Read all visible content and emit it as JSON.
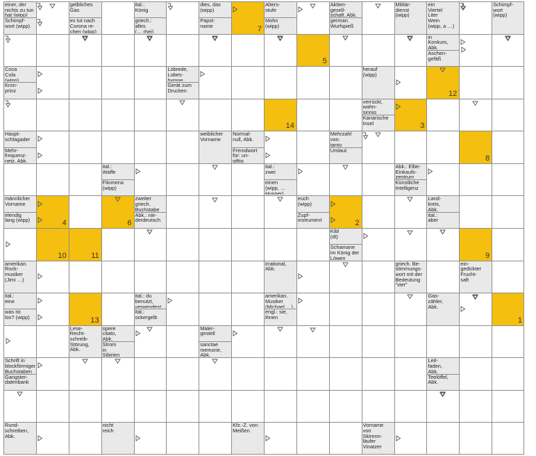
{
  "grid": {
    "cols": 16,
    "rows": 14
  },
  "colors": {
    "highlight": "#f4bf0e",
    "clue_bg": "#e9e9e9",
    "grid_line": "#8c8c8c"
  },
  "highlights": [
    {
      "col": 7,
      "row": 0,
      "number": "7"
    },
    {
      "col": 9,
      "row": 1,
      "number": "5"
    },
    {
      "col": 13,
      "row": 2,
      "number": "12"
    },
    {
      "col": 8,
      "row": 3,
      "number": "14"
    },
    {
      "col": 12,
      "row": 3,
      "number": "3"
    },
    {
      "col": 14,
      "row": 4,
      "number": "8"
    },
    {
      "col": 1,
      "row": 6,
      "number": "4"
    },
    {
      "col": 3,
      "row": 6,
      "number": "6"
    },
    {
      "col": 10,
      "row": 6,
      "number": "2"
    },
    {
      "col": 1,
      "row": 7,
      "number": "10"
    },
    {
      "col": 2,
      "row": 7,
      "number": "11"
    },
    {
      "col": 14,
      "row": 7,
      "number": "9"
    },
    {
      "col": 2,
      "row": 9,
      "number": "13"
    },
    {
      "col": 15,
      "row": 9,
      "number": "1"
    }
  ],
  "clues": [
    {
      "col": 0,
      "row": 0,
      "parts": [
        {
          "text": "einer, der nichts zu tun hat (wipp)",
          "arrow": "right-down"
        },
        {
          "text": "Schimpf-\nwort (wipp)",
          "arrow": "right-down"
        }
      ]
    },
    {
      "col": 2,
      "row": 0,
      "parts": [
        {
          "text": "gelbliches Gas",
          "arrow": "down"
        },
        {
          "text": "es tut nach Corona re-\nchen (wipp)",
          "arrow": "down"
        }
      ]
    },
    {
      "col": 4,
      "row": 0,
      "parts": [
        {
          "text": "ital.:\nKönig",
          "arrow": "down"
        },
        {
          "text": "griech.:\nalles\n(… rhei)",
          "arrow": "down"
        }
      ]
    },
    {
      "col": 6,
      "row": 0,
      "parts": [
        {
          "text": "dies, das\n(wipp)",
          "arrow": "right"
        },
        {
          "text": "Papst-\nname",
          "arrow": "down"
        }
      ]
    },
    {
      "col": 8,
      "row": 0,
      "parts": [
        {
          "text": "Alters-\nstufe",
          "arrow": "right"
        },
        {
          "text": "Mohn\n(wipp)",
          "arrow": "down"
        }
      ]
    },
    {
      "col": 10,
      "row": 0,
      "parts": [
        {
          "text": "Aktien-\ngesell-\nschaft, Abk.",
          "arrow": "down"
        },
        {
          "text": "german.\nWurfspieß",
          "arrow": "down"
        }
      ]
    },
    {
      "col": 12,
      "row": 0,
      "parts": [
        {
          "text": "Militär-\ndienst\n(wipp)",
          "arrow": "down"
        }
      ]
    },
    {
      "col": 13,
      "row": 0,
      "parts": [
        {
          "text": "ein\nViertel\nLiter\nWein\n(wipp, a …)",
          "arrow": "right-down"
        }
      ]
    },
    {
      "col": 15,
      "row": 0,
      "parts": [
        {
          "text": "Schimpf-\nwort\n(wipp)",
          "arrow": "down"
        }
      ]
    },
    {
      "col": 13,
      "row": 1,
      "parts": [
        {
          "text": "in\nKonkurs,\nAbk.",
          "arrow": "right"
        },
        {
          "text": "Aschen-\ngefäß",
          "arrow": "down"
        }
      ]
    },
    {
      "col": 0,
      "row": 2,
      "parts": [
        {
          "text": "Coca\nCola\n(wipp)",
          "arrow": "right"
        },
        {
          "text": "Kron-\nprinz",
          "arrow": "right"
        }
      ]
    },
    {
      "col": 5,
      "row": 2,
      "parts": [
        {
          "text": "Lobrede,\nLobes-\nhymne",
          "arrow": "right"
        },
        {
          "text": "Gerät zum\nDrucken",
          "arrow": "down"
        }
      ]
    },
    {
      "col": 11,
      "row": 2,
      "parts": [
        {
          "text": "herauf\n(wipp)",
          "arrow": "right"
        }
      ]
    },
    {
      "col": 11,
      "row": 3,
      "parts": [
        {
          "text": "verrückt,\nwahn-\nsinnig",
          "arrow": "right"
        },
        {
          "text": "Kanarische\nInsel",
          "arrow": "down"
        }
      ]
    },
    {
      "col": 0,
      "row": 4,
      "parts": [
        {
          "text": "Haupt-\nschlagader",
          "arrow": "right"
        },
        {
          "text": "Mehr-\nfrequenz-\nnetz, Abk.",
          "arrow": "right"
        }
      ]
    },
    {
      "col": 6,
      "row": 4,
      "parts": [
        {
          "text": "weiblicher\nVorname",
          "arrow": "down"
        }
      ]
    },
    {
      "col": 7,
      "row": 4,
      "parts": [
        {
          "text": "Normal-\nnull, Abk.",
          "arrow": "right"
        },
        {
          "text": "Fremdwort\nfür: un-\ngiftig",
          "arrow": "right"
        }
      ]
    },
    {
      "col": 10,
      "row": 4,
      "parts": [
        {
          "text": "Mehrzahl\nvon:\ntanto",
          "arrow": "right-down"
        },
        {
          "text": "Umlaut",
          "arrow": "down"
        }
      ]
    },
    {
      "col": 3,
      "row": 5,
      "parts": [
        {
          "text": "ital.:\nWaffe",
          "arrow": "right"
        },
        {
          "text": "Filomena\n(wipp)",
          "arrow": "down"
        }
      ]
    },
    {
      "col": 8,
      "row": 5,
      "parts": [
        {
          "text": "ital.:\nzwei",
          "arrow": "right"
        },
        {
          "text": "einen\n(wipp, …\nHunger)",
          "arrow": "down"
        }
      ]
    },
    {
      "col": 12,
      "row": 5,
      "parts": [
        {
          "text": "Abk.: Elbe-\nEinkaufs-\nzentrum",
          "arrow": "right"
        },
        {
          "text": "Künstliche\nIntelligenz",
          "arrow": "down"
        }
      ]
    },
    {
      "col": 0,
      "row": 6,
      "parts": [
        {
          "text": "männlicher\nVorname",
          "arrow": "right"
        },
        {
          "text": "elendig\nlang (wipp)",
          "arrow": "right"
        }
      ]
    },
    {
      "col": 4,
      "row": 6,
      "parts": [
        {
          "text": "zweiter\ngriech.\nBuchstabe",
          "arrow": "down"
        },
        {
          "text": "Abk.: nie-\nderdeutsch",
          "arrow": "down"
        }
      ]
    },
    {
      "col": 9,
      "row": 6,
      "parts": [
        {
          "text": "euch\n(wipp)",
          "arrow": "right"
        },
        {
          "text": "Zupf-\ninstrument",
          "arrow": "right"
        }
      ]
    },
    {
      "col": 13,
      "row": 6,
      "parts": [
        {
          "text": "Land-\nkreis,\nAbk.",
          "arrow": "down"
        },
        {
          "text": "ital.:\naber",
          "arrow": "down"
        }
      ]
    },
    {
      "col": 10,
      "row": 7,
      "parts": [
        {
          "text": "Kibl\n(dt)",
          "arrow": "right"
        },
        {
          "text": "Schamane\nim König der\nLöwen",
          "arrow": "down"
        }
      ]
    },
    {
      "col": 0,
      "row": 8,
      "parts": [
        {
          "text": "amerikan.\nRock-\nmusiker\n(Jimi …)",
          "arrow": "right"
        }
      ]
    },
    {
      "col": 8,
      "row": 8,
      "parts": [
        {
          "text": "irrational,\nAbk.",
          "arrow": "right"
        }
      ]
    },
    {
      "col": 12,
      "row": 8,
      "parts": [
        {
          "text": "griech. Be-\nstimmungs-\nwort mit der\nBedeutung\n\"vier\"",
          "arrow": "down"
        }
      ]
    },
    {
      "col": 14,
      "row": 8,
      "parts": [
        {
          "text": "ein-\ngedickter\nFrucht-\nsaft",
          "arrow": "down"
        }
      ]
    },
    {
      "col": 0,
      "row": 9,
      "parts": [
        {
          "text": "ital.:\neine",
          "arrow": "right"
        },
        {
          "text": "was ist\nlos? (wipp)",
          "arrow": "right"
        }
      ]
    },
    {
      "col": 4,
      "row": 9,
      "parts": [
        {
          "text": "ital.: du\nbenutzt,\nverwendest",
          "arrow": "right"
        },
        {
          "text": "ital.:\nockergelb",
          "arrow": "down"
        }
      ]
    },
    {
      "col": 8,
      "row": 9,
      "parts": [
        {
          "text": "amerikan.\nMusiker\n(Michael …)",
          "arrow": "right"
        },
        {
          "text": "engl.: sie,\nihnen",
          "arrow": "down"
        }
      ]
    },
    {
      "col": 13,
      "row": 9,
      "parts": [
        {
          "text": "Gas-\nzähler,\nAbk.",
          "arrow": "right"
        }
      ]
    },
    {
      "col": 2,
      "row": 10,
      "parts": [
        {
          "text": "Lese-\nRecht-\nschreib-\nStörung,\nAbk.",
          "arrow": "down"
        }
      ]
    },
    {
      "col": 3,
      "row": 10,
      "parts": [
        {
          "text": "opere\ncitato,\nAbk.",
          "arrow": "right"
        },
        {
          "text": "Strom\nin\nSibirien",
          "arrow": "down"
        }
      ]
    },
    {
      "col": 6,
      "row": 10,
      "parts": [
        {
          "text": "Maler-\ngestell",
          "arrow": "right"
        },
        {
          "text": "sanctae\nmemorie,\nAbk.",
          "arrow": "down"
        }
      ]
    },
    {
      "col": 0,
      "row": 11,
      "parts": [
        {
          "text": "Schrift in\nblockförmigen\nBuchstaben",
          "arrow": "right"
        },
        {
          "text": "Gangster-\ndatenbank",
          "arrow": "down"
        }
      ]
    },
    {
      "col": 13,
      "row": 11,
      "parts": [
        {
          "text": "Leit-\nfaden,\nAbk.",
          "arrow": "down"
        },
        {
          "text": "Teelöffel,\nAbk.",
          "arrow": "down"
        }
      ]
    },
    {
      "col": 0,
      "row": 13,
      "parts": [
        {
          "text": "Rund-\nschreiben,\nAbk.",
          "arrow": "right"
        }
      ]
    },
    {
      "col": 3,
      "row": 13,
      "parts": [
        {
          "text": "nicht\nreich",
          "arrow": "right"
        }
      ]
    },
    {
      "col": 7,
      "row": 13,
      "parts": [
        {
          "text": "Kfz.-Z. von:\nMeißen",
          "arrow": "right"
        }
      ]
    },
    {
      "col": 11,
      "row": 13,
      "parts": [
        {
          "text": "Vorname\nvon\nSkirenn-\nläufer\nVinatzer",
          "arrow": "right"
        }
      ]
    }
  ],
  "blank_arrows": [
    {
      "col": 1,
      "row": 0,
      "arrow": "down"
    },
    {
      "col": 5,
      "row": 0,
      "arrow": "right-down"
    },
    {
      "col": 9,
      "row": 0,
      "arrow": "down"
    },
    {
      "col": 11,
      "row": 0,
      "arrow": "down"
    },
    {
      "col": 14,
      "row": 0,
      "arrow": "right-down"
    },
    {
      "col": 0,
      "row": 1,
      "arrow": "right-down"
    },
    {
      "col": 2,
      "row": 1,
      "arrow": "down"
    },
    {
      "col": 4,
      "row": 1,
      "arrow": "down"
    },
    {
      "col": 6,
      "row": 1,
      "arrow": "down"
    },
    {
      "col": 8,
      "row": 1,
      "arrow": "down"
    },
    {
      "col": 12,
      "row": 1,
      "arrow": "down"
    },
    {
      "col": 14,
      "row": 1,
      "arrow": "right"
    },
    {
      "col": 15,
      "row": 1,
      "arrow": "down"
    },
    {
      "col": 0,
      "row": 3,
      "arrow": "right-down"
    },
    {
      "col": 14,
      "row": 3,
      "arrow": "down"
    },
    {
      "col": 0,
      "row": 7,
      "arrow": "right"
    },
    {
      "col": 6,
      "row": 6,
      "arrow": "down"
    },
    {
      "col": 12,
      "row": 7,
      "arrow": "down"
    },
    {
      "col": 0,
      "row": 10,
      "arrow": "right"
    },
    {
      "col": 9,
      "row": 10,
      "arrow": "down"
    },
    {
      "col": 14,
      "row": 9,
      "arrow": "down"
    },
    {
      "col": 13,
      "row": 12,
      "arrow": "down"
    }
  ]
}
